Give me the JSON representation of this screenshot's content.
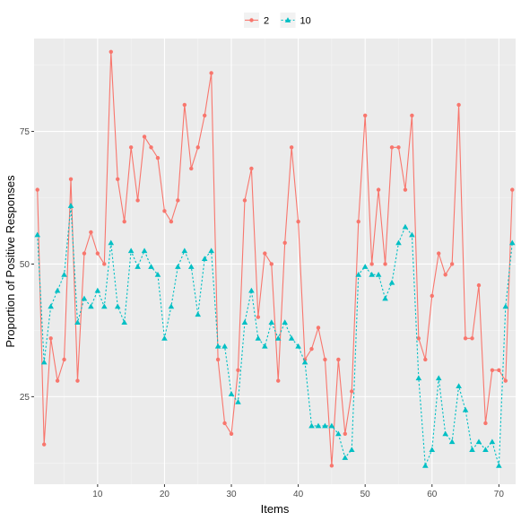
{
  "chart_data": {
    "type": "line",
    "title": "",
    "xlabel": "Items",
    "ylabel": "Proportion of Positive Responses",
    "xlim": [
      0.5,
      72.5
    ],
    "ylim": [
      8.5,
      92.5
    ],
    "x_ticks": [
      10,
      20,
      30,
      40,
      50,
      60,
      70
    ],
    "y_ticks": [
      25,
      50,
      75
    ],
    "grid": true,
    "legend_position": "top",
    "series": [
      {
        "name": "2",
        "color": "#F8766D",
        "line": "solid",
        "marker": "circle",
        "x": [
          1,
          2,
          3,
          4,
          5,
          6,
          7,
          8,
          9,
          10,
          11,
          12,
          13,
          14,
          15,
          16,
          17,
          18,
          19,
          20,
          21,
          22,
          23,
          24,
          25,
          26,
          27,
          28,
          29,
          30,
          31,
          32,
          33,
          34,
          35,
          36,
          37,
          38,
          39,
          40,
          41,
          42,
          43,
          44,
          45,
          46,
          47,
          48,
          49,
          50,
          51,
          52,
          53,
          54,
          55,
          56,
          57,
          58,
          59,
          60,
          61,
          62,
          63,
          64,
          65,
          66,
          67,
          68,
          69,
          70,
          71,
          72
        ],
        "values": [
          64,
          16,
          36,
          28,
          32,
          66,
          28,
          52,
          56,
          52,
          50,
          90,
          66,
          58,
          72,
          62,
          74,
          72,
          70,
          60,
          58,
          62,
          80,
          68,
          72,
          78,
          86,
          32,
          20,
          18,
          30,
          62,
          68,
          40,
          52,
          50,
          28,
          54,
          72,
          58,
          32,
          34,
          38,
          32,
          12,
          32,
          18,
          26,
          58,
          78,
          50,
          64,
          50,
          72,
          72,
          64,
          78,
          36,
          32,
          44,
          52,
          48,
          50,
          80,
          36,
          36,
          46,
          20,
          30,
          30,
          28,
          64
        ]
      },
      {
        "name": "10",
        "color": "#00BFC4",
        "line": "dotted",
        "marker": "triangle",
        "x": [
          1,
          2,
          3,
          4,
          5,
          6,
          7,
          8,
          9,
          10,
          11,
          12,
          13,
          14,
          15,
          16,
          17,
          18,
          19,
          20,
          21,
          22,
          23,
          24,
          25,
          26,
          27,
          28,
          29,
          30,
          31,
          32,
          33,
          34,
          35,
          36,
          37,
          38,
          39,
          40,
          41,
          42,
          43,
          44,
          45,
          46,
          47,
          48,
          49,
          50,
          51,
          52,
          53,
          54,
          55,
          56,
          57,
          58,
          59,
          60,
          61,
          62,
          63,
          64,
          65,
          66,
          67,
          68,
          69,
          70,
          71,
          72
        ],
        "values": [
          55.5,
          31.5,
          42,
          45,
          48,
          61,
          39,
          43.5,
          42,
          45,
          42,
          54,
          42,
          39,
          52.5,
          49.5,
          52.5,
          49.5,
          48,
          36,
          42,
          49.5,
          52.5,
          49.5,
          40.5,
          51,
          52.5,
          34.5,
          34.5,
          25.5,
          24,
          39,
          45,
          36,
          34.5,
          39,
          36,
          39,
          36,
          34.5,
          31.5,
          19.5,
          19.5,
          19.5,
          19.5,
          18,
          13.5,
          15,
          48,
          49.5,
          48,
          48,
          43.5,
          46.5,
          54,
          57,
          55.5,
          28.5,
          12,
          15,
          28.5,
          18,
          16.5,
          27,
          22.5,
          15,
          16.5,
          15,
          16.5,
          12,
          42,
          54
        ]
      }
    ]
  }
}
